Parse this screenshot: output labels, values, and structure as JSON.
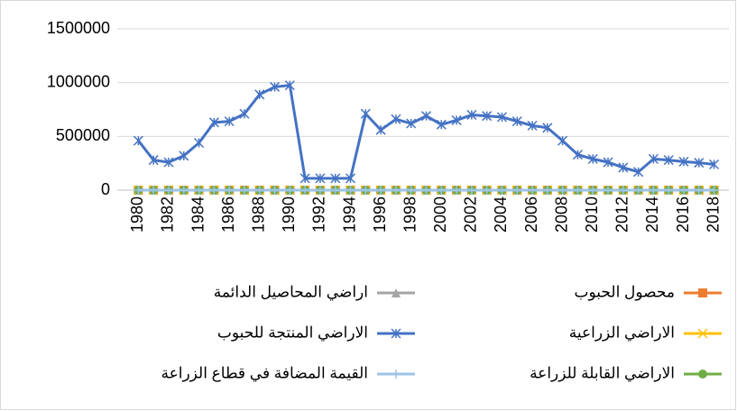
{
  "chart_data": {
    "type": "line",
    "categories": [
      1980,
      null,
      1982,
      null,
      1984,
      null,
      1986,
      null,
      1988,
      null,
      1990,
      null,
      1992,
      null,
      1994,
      null,
      1996,
      null,
      1998,
      null,
      2000,
      null,
      2002,
      null,
      2004,
      null,
      2006,
      null,
      2008,
      null,
      2010,
      null,
      2012,
      null,
      2014,
      null,
      2016,
      null,
      2018
    ],
    "ylim": [
      0,
      1500000
    ],
    "yticks": [
      0,
      500000,
      1000000,
      1500000
    ],
    "grid": true,
    "series": [
      {
        "name": "محصول الحبوب",
        "color": "#ED7D31",
        "marker": "square",
        "values": [
          0,
          0,
          0,
          0,
          0,
          0,
          0,
          0,
          0,
          0,
          0,
          0,
          0,
          0,
          0,
          0,
          0,
          0,
          0,
          0,
          0,
          0,
          0,
          0,
          0,
          0,
          0,
          0,
          0,
          0,
          0,
          0,
          0,
          0,
          0,
          0,
          0,
          0,
          0
        ]
      },
      {
        "name": "اراضي المحاصيل الدائمة",
        "color": "#A5A5A5",
        "marker": "triangle",
        "values": [
          0,
          0,
          0,
          0,
          0,
          0,
          0,
          0,
          0,
          0,
          0,
          0,
          0,
          0,
          0,
          0,
          0,
          0,
          0,
          0,
          0,
          0,
          0,
          0,
          0,
          0,
          0,
          0,
          0,
          0,
          0,
          0,
          0,
          0,
          0,
          0,
          0,
          0,
          0
        ]
      },
      {
        "name": "الاراضي الزراعية",
        "color": "#FFC000",
        "marker": "x",
        "values": [
          0,
          0,
          0,
          0,
          0,
          0,
          0,
          0,
          0,
          0,
          0,
          0,
          0,
          0,
          0,
          0,
          0,
          0,
          0,
          0,
          0,
          0,
          0,
          0,
          0,
          0,
          0,
          0,
          0,
          0,
          0,
          0,
          0,
          0,
          0,
          0,
          0,
          0,
          0
        ]
      },
      {
        "name": "الاراضي المنتجة للحبوب",
        "color": "#4472C4",
        "marker": "star",
        "values": [
          460000,
          280000,
          260000,
          320000,
          440000,
          630000,
          640000,
          710000,
          890000,
          960000,
          975000,
          110000,
          110000,
          110000,
          110000,
          710000,
          560000,
          660000,
          620000,
          690000,
          610000,
          650000,
          700000,
          690000,
          680000,
          640000,
          600000,
          580000,
          460000,
          330000,
          290000,
          260000,
          210000,
          170000,
          290000,
          280000,
          265000,
          255000,
          240000
        ]
      },
      {
        "name": "الاراضي القابلة للزراعة",
        "color": "#70AD47",
        "marker": "circle",
        "values": [
          0,
          0,
          0,
          0,
          0,
          0,
          0,
          0,
          0,
          0,
          0,
          0,
          0,
          0,
          0,
          0,
          0,
          0,
          0,
          0,
          0,
          0,
          0,
          0,
          0,
          0,
          0,
          0,
          0,
          0,
          0,
          0,
          0,
          0,
          0,
          0,
          0,
          0,
          0
        ]
      },
      {
        "name": "القيمة المضافة في قطاع الزراعة",
        "color": "#9DC3E6",
        "marker": "plus",
        "values": [
          0,
          0,
          0,
          0,
          0,
          0,
          0,
          0,
          0,
          0,
          0,
          0,
          0,
          0,
          0,
          0,
          0,
          0,
          0,
          0,
          0,
          0,
          0,
          0,
          0,
          0,
          0,
          0,
          0,
          0,
          0,
          0,
          0,
          0,
          0,
          0,
          0,
          0,
          0
        ]
      }
    ]
  }
}
